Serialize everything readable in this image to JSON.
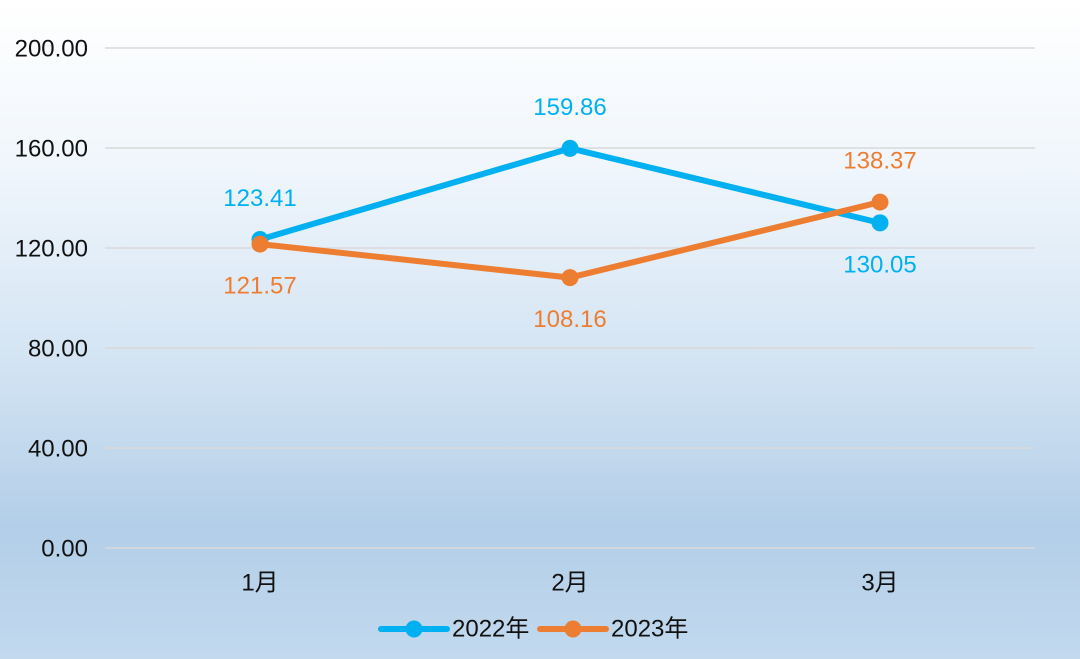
{
  "chart_data": {
    "type": "line",
    "categories": [
      "1月",
      "2月",
      "3月"
    ],
    "series": [
      {
        "name": "2022年",
        "values": [
          123.41,
          159.86,
          130.05
        ],
        "color": "#00b0f0"
      },
      {
        "name": "2023年",
        "values": [
          121.57,
          108.16,
          138.37
        ],
        "color": "#ed7d31"
      }
    ],
    "ylim": [
      0,
      200
    ],
    "yticks": [
      "0.00",
      "40.00",
      "80.00",
      "120.00",
      "160.00",
      "200.00"
    ],
    "grid": true,
    "data_labels": true,
    "legend": "bottom"
  }
}
